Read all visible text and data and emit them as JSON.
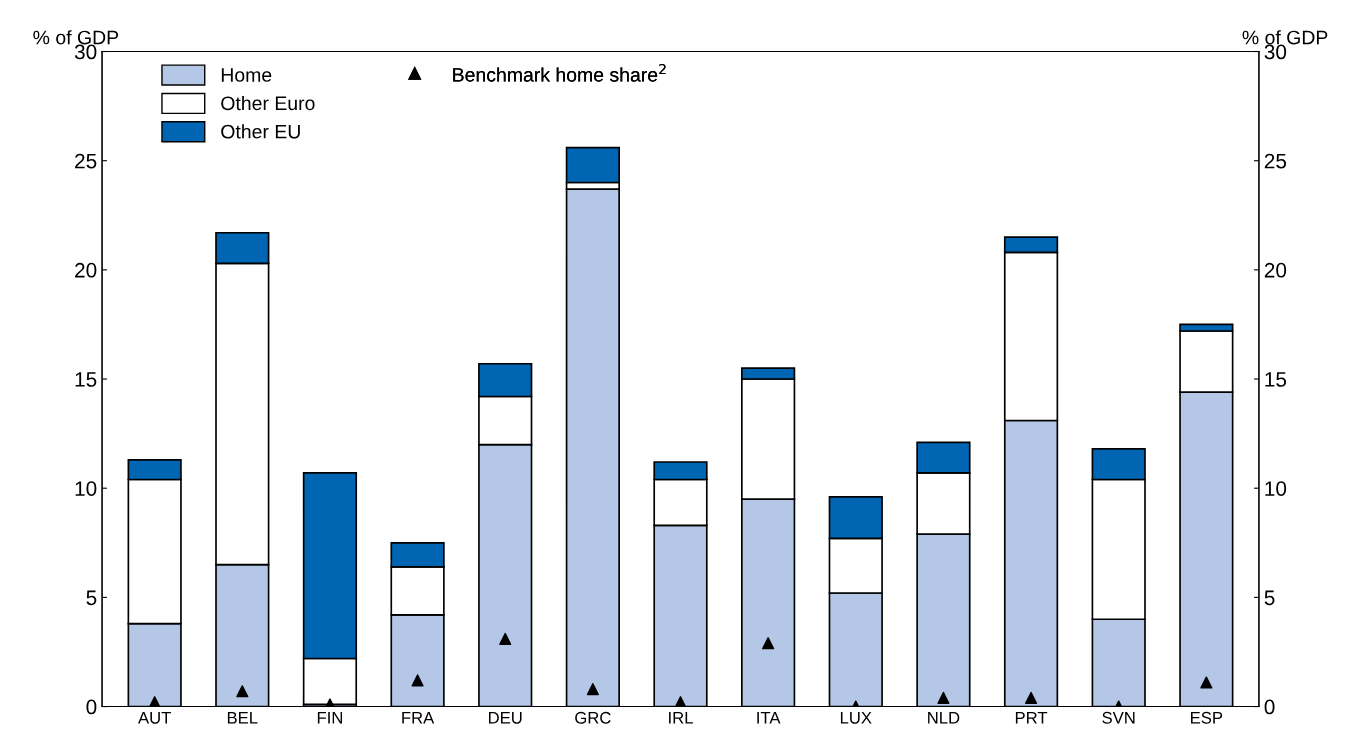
{
  "chart_data": {
    "type": "bar",
    "stacked": true,
    "ylabel": "% of GDP",
    "y2label": "% of GDP",
    "categories": [
      "AUT",
      "BEL",
      "FIN",
      "FRA",
      "DEU",
      "GRC",
      "IRL",
      "ITA",
      "LUX",
      "NLD",
      "PRT",
      "SVN",
      "ESP"
    ],
    "series": [
      {
        "name": "Home",
        "color": "#b4c7e7",
        "values": [
          3.8,
          6.5,
          0.1,
          4.2,
          12.0,
          23.7,
          8.3,
          9.5,
          5.2,
          7.9,
          13.1,
          4.0,
          14.4
        ]
      },
      {
        "name": "Other Euro",
        "color": "#ffffff",
        "values": [
          6.6,
          13.8,
          2.1,
          2.2,
          2.2,
          0.3,
          2.1,
          5.5,
          2.5,
          2.8,
          7.7,
          6.4,
          2.8
        ]
      },
      {
        "name": "Other EU",
        "color": "#0066b3",
        "values": [
          0.9,
          1.4,
          8.5,
          1.1,
          1.5,
          1.6,
          0.8,
          0.5,
          1.9,
          1.4,
          0.7,
          1.4,
          0.3
        ]
      },
      {
        "name": "Benchmark home share$^{2}$",
        "type": "scatter",
        "marker": "triangle",
        "color": "#000000",
        "x": [
          "AUT",
          "BEL",
          "FIN",
          "FRA",
          "DEU",
          "GRC",
          "IRL",
          "ITA",
          "LUX",
          "NLD",
          "PRT",
          "SVN",
          "ESP"
        ],
        "values": [
          0.2,
          0.7,
          0.1,
          1.2,
          3.1,
          0.8,
          0.2,
          2.9,
          0.0,
          0.4,
          0.4,
          0.0,
          1.1
        ]
      }
    ],
    "ylim": [
      0,
      30
    ],
    "yticks": [
      0,
      5,
      10,
      15,
      20,
      25,
      30
    ],
    "y2lim": [
      0,
      30
    ],
    "y2ticks": [
      0,
      5,
      10,
      15,
      20,
      25,
      30
    ],
    "legend": "top left",
    "grid": false
  }
}
